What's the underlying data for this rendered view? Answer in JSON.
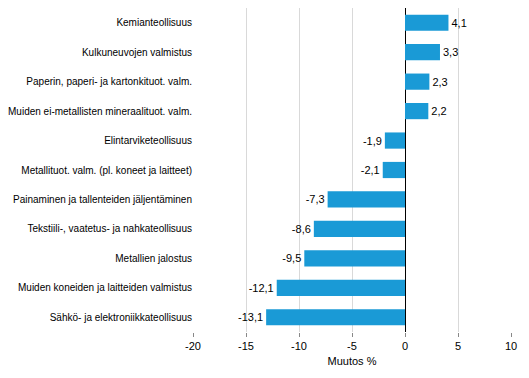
{
  "chart_data": {
    "type": "bar",
    "orientation": "horizontal",
    "categories": [
      "Kemianteollisuus",
      "Kulkuneuvojen valmistus",
      "Paperin, paperi- ja kartonkituot. valm.",
      "Muiden ei-metallisten mineraalituot. valm.",
      "Elintarviketeollisuus",
      "Metallituot. valm. (pl. koneet ja laitteet)",
      "Painaminen ja tallenteiden jäljentäminen",
      "Tekstiili-, vaatetus- ja nahkateollisuus",
      "Metallien jalostus",
      "Muiden koneiden ja laitteiden valmistus",
      "Sähkö- ja elektroniikkateollisuus"
    ],
    "values": [
      4.1,
      3.3,
      2.3,
      2.2,
      -1.9,
      -2.1,
      -7.3,
      -8.6,
      -9.5,
      -12.1,
      -13.1
    ],
    "value_labels": [
      "4,1",
      "3,3",
      "2,3",
      "2,2",
      "-1,9",
      "-2,1",
      "-7,3",
      "-8,6",
      "-9,5",
      "-12,1",
      "-13,1"
    ],
    "data_labels": true,
    "color": "#1a9ad6",
    "x_label": "Muutos %",
    "xlim": [
      -20,
      10
    ],
    "xticks": [
      -20,
      -15,
      -10,
      -5,
      0,
      5,
      10
    ],
    "grid": true
  }
}
